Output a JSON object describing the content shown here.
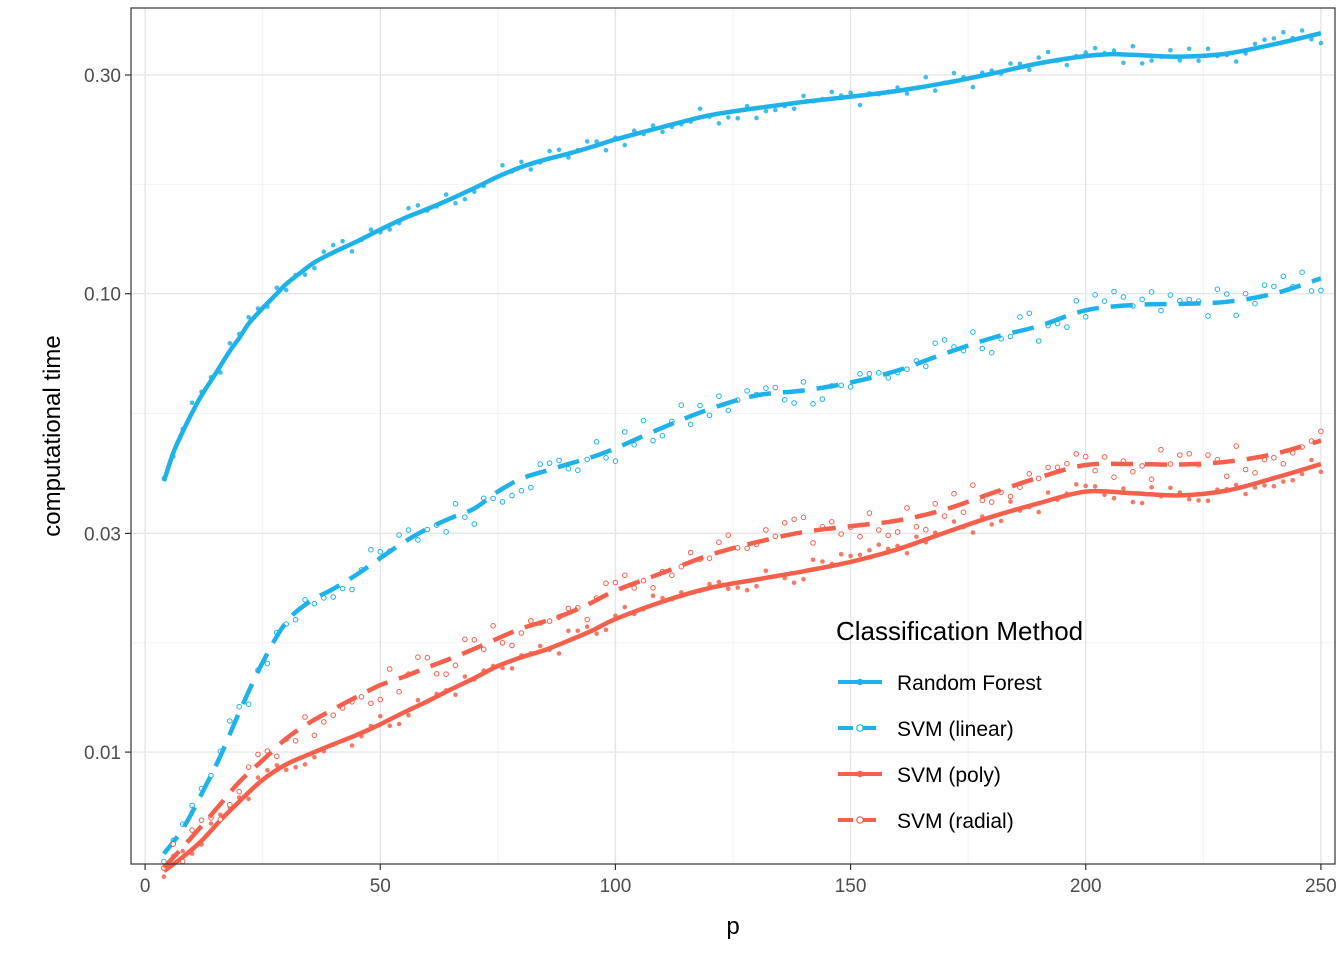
{
  "chart_data": {
    "type": "line",
    "title": "",
    "xlabel": "p",
    "ylabel": "computational time",
    "xlim": [
      -3,
      253
    ],
    "ylim": [
      0.0057,
      0.42
    ],
    "y_scale": "log10",
    "grid": true,
    "x_ticks": [
      0,
      50,
      100,
      150,
      200,
      250
    ],
    "x_tick_labels": [
      "0",
      "50",
      "100",
      "150",
      "200",
      "250"
    ],
    "y_ticks": [
      0.01,
      0.03,
      0.1,
      0.3
    ],
    "y_tick_labels": [
      "0.01",
      "0.03",
      "0.10",
      "0.30"
    ],
    "legend": {
      "title": "Classification Method",
      "position": "bottom-right-inside"
    },
    "series": [
      {
        "name": "Random Forest",
        "color": "#1fb1e9",
        "line_style": "solid",
        "point_style": "filled",
        "x": [
          4,
          6,
          8,
          10,
          12,
          15,
          18,
          20,
          22,
          25,
          28,
          30,
          33,
          36,
          40,
          45,
          50,
          55,
          60,
          65,
          70,
          75,
          80,
          85,
          90,
          95,
          100,
          110,
          120,
          130,
          140,
          150,
          160,
          170,
          180,
          190,
          200,
          205,
          210,
          220,
          230,
          240,
          250
        ],
        "y": [
          0.039,
          0.045,
          0.05,
          0.055,
          0.06,
          0.067,
          0.075,
          0.08,
          0.086,
          0.093,
          0.1,
          0.105,
          0.111,
          0.117,
          0.123,
          0.13,
          0.138,
          0.146,
          0.153,
          0.161,
          0.17,
          0.18,
          0.189,
          0.196,
          0.202,
          0.209,
          0.217,
          0.231,
          0.245,
          0.254,
          0.262,
          0.269,
          0.277,
          0.288,
          0.302,
          0.318,
          0.33,
          0.333,
          0.332,
          0.329,
          0.334,
          0.35,
          0.37
        ]
      },
      {
        "name": "SVM (linear)",
        "color": "#1fb1e9",
        "line_style": "dashed",
        "point_style": "open",
        "x": [
          4,
          8,
          12,
          16,
          20,
          25,
          30,
          35,
          40,
          45,
          50,
          55,
          60,
          65,
          70,
          75,
          80,
          85,
          90,
          95,
          100,
          110,
          120,
          130,
          140,
          150,
          160,
          170,
          180,
          190,
          200,
          210,
          220,
          230,
          240,
          250
        ],
        "y": [
          0.006,
          0.0068,
          0.0081,
          0.0098,
          0.0122,
          0.0157,
          0.0192,
          0.0213,
          0.0227,
          0.0244,
          0.0265,
          0.0287,
          0.0307,
          0.0324,
          0.034,
          0.037,
          0.0395,
          0.041,
          0.0425,
          0.044,
          0.046,
          0.051,
          0.056,
          0.06,
          0.0615,
          0.064,
          0.068,
          0.074,
          0.08,
          0.085,
          0.092,
          0.0945,
          0.095,
          0.096,
          0.1,
          0.108
        ]
      },
      {
        "name": "SVM (poly)",
        "color": "#f4604c",
        "line_style": "solid",
        "point_style": "filled",
        "x": [
          4,
          8,
          12,
          16,
          20,
          25,
          30,
          35,
          40,
          45,
          50,
          55,
          60,
          65,
          70,
          75,
          80,
          85,
          90,
          95,
          100,
          110,
          120,
          130,
          140,
          150,
          160,
          170,
          180,
          190,
          200,
          210,
          220,
          230,
          240,
          250
        ],
        "y": [
          0.0055,
          0.0059,
          0.0064,
          0.0071,
          0.0078,
          0.0087,
          0.0094,
          0.0099,
          0.0104,
          0.0109,
          0.0115,
          0.0122,
          0.0129,
          0.0137,
          0.0145,
          0.0154,
          0.0161,
          0.0167,
          0.0175,
          0.0184,
          0.0195,
          0.0213,
          0.0228,
          0.0238,
          0.0248,
          0.026,
          0.0277,
          0.0301,
          0.0326,
          0.0349,
          0.037,
          0.0367,
          0.0363,
          0.0372,
          0.0396,
          0.0425
        ]
      },
      {
        "name": "SVM (radial)",
        "color": "#f4604c",
        "line_style": "dashed",
        "point_style": "open",
        "x": [
          4,
          8,
          12,
          16,
          20,
          25,
          30,
          35,
          40,
          45,
          50,
          55,
          60,
          65,
          70,
          75,
          80,
          85,
          90,
          95,
          100,
          110,
          120,
          130,
          140,
          150,
          160,
          170,
          180,
          190,
          200,
          210,
          220,
          230,
          240,
          250
        ],
        "y": [
          0.0056,
          0.0062,
          0.0069,
          0.0077,
          0.0086,
          0.0096,
          0.0107,
          0.0116,
          0.0124,
          0.0132,
          0.014,
          0.0146,
          0.0153,
          0.016,
          0.0168,
          0.0177,
          0.0186,
          0.0193,
          0.0201,
          0.0212,
          0.0225,
          0.0246,
          0.0269,
          0.0287,
          0.0302,
          0.0311,
          0.032,
          0.0338,
          0.0367,
          0.0397,
          0.0423,
          0.0425,
          0.0424,
          0.043,
          0.0447,
          0.0478
        ]
      }
    ]
  }
}
